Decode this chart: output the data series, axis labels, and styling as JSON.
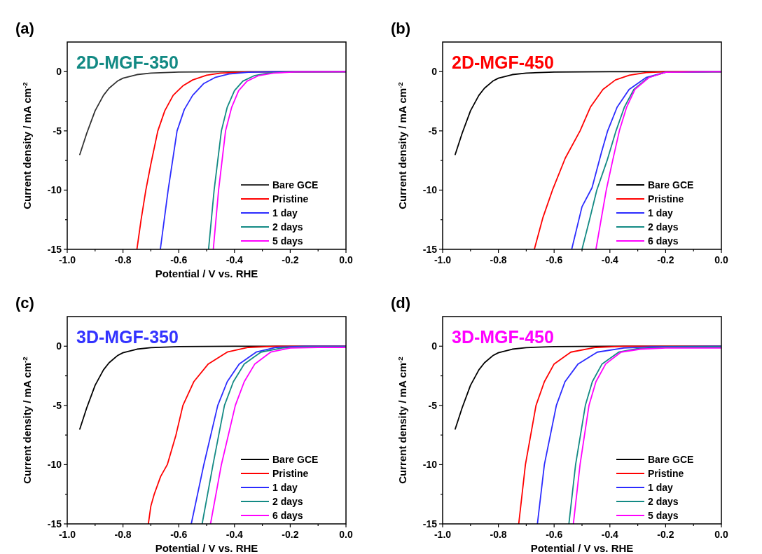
{
  "chart_data": [
    {
      "type": "line",
      "title": "(a)",
      "subtitle": "2D-MGF-350",
      "xlabel": "Potential / V vs. RHE",
      "ylabel": "Current density / mA cm$^{-2}$",
      "xlim": [
        -1,
        0
      ],
      "ylim": [
        -15,
        2.5
      ],
      "xticks": [
        {
          "value": -1,
          "label": "-1.0"
        },
        {
          "value": -0.9,
          "label": null
        },
        {
          "value": -0.8,
          "label": "-0.8"
        },
        {
          "value": -0.7,
          "label": null
        },
        {
          "value": -0.6,
          "label": "-0.6"
        },
        {
          "value": -0.5,
          "label": null
        },
        {
          "value": -0.4,
          "label": "-0.4"
        },
        {
          "value": -0.3,
          "label": null
        },
        {
          "value": -0.2,
          "label": "-0.2"
        },
        {
          "value": -0.1,
          "label": null
        },
        {
          "value": 0,
          "label": "0.0"
        }
      ],
      "yticks": [
        -15,
        {
          "value": -12.5,
          "label": null
        },
        -10,
        {
          "value": -7.5,
          "label": null
        },
        -5,
        {
          "value": -2.5,
          "label": null
        },
        0
      ],
      "legend": "bottom right",
      "series": [
        {
          "name": "Bare GCE",
          "color": "#333333",
          "x": [
            -0.955,
            -0.93,
            -0.9,
            -0.87,
            -0.85,
            -0.82,
            -0.8,
            -0.75,
            -0.7,
            -0.6,
            -0.4,
            0
          ],
          "values": [
            -7.0,
            -5.2,
            -3.3,
            -2.0,
            -1.4,
            -0.8,
            -0.55,
            -0.25,
            -0.12,
            -0.04,
            0,
            0
          ]
        },
        {
          "name": "Pristine",
          "color": "#ff0000",
          "x": [
            -0.75,
            -0.735,
            -0.718,
            -0.7,
            -0.675,
            -0.65,
            -0.62,
            -0.585,
            -0.55,
            -0.5,
            -0.45,
            -0.35,
            0
          ],
          "values": [
            -15,
            -12.5,
            -10,
            -7.8,
            -5,
            -3.3,
            -2.0,
            -1.2,
            -0.7,
            -0.3,
            -0.12,
            -0.02,
            0
          ]
        },
        {
          "name": "1 day",
          "color": "#2b2bff",
          "x": [
            -0.666,
            -0.638,
            -0.606,
            -0.58,
            -0.55,
            -0.51,
            -0.47,
            -0.42,
            -0.35,
            -0.25,
            0
          ],
          "values": [
            -15,
            -10,
            -5,
            -3.2,
            -2.0,
            -1.0,
            -0.5,
            -0.2,
            -0.05,
            0,
            0
          ]
        },
        {
          "name": "2 days",
          "color": "#138a84",
          "x": [
            -0.493,
            -0.473,
            -0.447,
            -0.426,
            -0.4,
            -0.37,
            -0.33,
            -0.28,
            -0.2,
            0
          ],
          "values": [
            -15,
            -10,
            -5,
            -3,
            -1.6,
            -0.8,
            -0.35,
            -0.12,
            -0.02,
            0
          ]
        },
        {
          "name": "5 days",
          "color": "#ff00ff",
          "x": [
            -0.476,
            -0.457,
            -0.432,
            -0.41,
            -0.385,
            -0.355,
            -0.315,
            -0.26,
            -0.18,
            0
          ],
          "values": [
            -15,
            -10,
            -5,
            -3,
            -1.6,
            -0.8,
            -0.35,
            -0.12,
            -0.02,
            0
          ]
        }
      ]
    },
    {
      "type": "line",
      "title": "(b)",
      "subtitle": "2D-MGF-450",
      "ylabel": "Current density / mA cm$^{-2}$",
      "xlim": [
        -1,
        0
      ],
      "ylim": [
        -15,
        2.5
      ],
      "xticks": [
        {
          "value": -1,
          "label": "-1.0"
        },
        {
          "value": -0.9,
          "label": null
        },
        {
          "value": -0.8,
          "label": "-0.8"
        },
        {
          "value": -0.7,
          "label": null
        },
        {
          "value": -0.6,
          "label": "-0.6"
        },
        {
          "value": -0.5,
          "label": null
        },
        {
          "value": -0.4,
          "label": "-0.4"
        },
        {
          "value": -0.3,
          "label": null
        },
        {
          "value": -0.2,
          "label": "-0.2"
        },
        {
          "value": -0.1,
          "label": null
        },
        {
          "value": 0,
          "label": "0.0"
        }
      ],
      "yticks": [
        -15,
        {
          "value": -12.5,
          "label": null
        },
        -10,
        {
          "value": -7.5,
          "label": null
        },
        -5,
        {
          "value": -2.5,
          "label": null
        },
        0
      ],
      "legend": "bottom right",
      "series": [
        {
          "name": "Bare GCE",
          "color": "#000000",
          "x": [
            -0.955,
            -0.93,
            -0.9,
            -0.87,
            -0.85,
            -0.82,
            -0.8,
            -0.75,
            -0.7,
            -0.6,
            -0.4,
            0
          ],
          "values": [
            -7.0,
            -5.2,
            -3.3,
            -2.0,
            -1.4,
            -0.8,
            -0.55,
            -0.25,
            -0.12,
            -0.04,
            0,
            0
          ]
        },
        {
          "name": "Pristine",
          "color": "#ff0000",
          "x": [
            -0.671,
            -0.64,
            -0.606,
            -0.56,
            -0.507,
            -0.47,
            -0.425,
            -0.38,
            -0.33,
            -0.27,
            -0.2,
            0
          ],
          "values": [
            -15,
            -12.3,
            -10,
            -7.3,
            -5,
            -3,
            -1.5,
            -0.7,
            -0.3,
            -0.08,
            0,
            0
          ]
        },
        {
          "name": "1 day",
          "color": "#2b2bff",
          "x": [
            -0.537,
            -0.5,
            -0.464,
            -0.43,
            -0.408,
            -0.374,
            -0.331,
            -0.27,
            -0.2,
            0
          ],
          "values": [
            -15,
            -11.4,
            -9.8,
            -6.8,
            -5,
            -3,
            -1.5,
            -0.5,
            -0.05,
            0
          ]
        },
        {
          "name": "2 days",
          "color": "#138a84",
          "x": [
            -0.5,
            -0.473,
            -0.447,
            -0.41,
            -0.378,
            -0.348,
            -0.314,
            -0.262,
            -0.2,
            0
          ],
          "values": [
            -15,
            -12.5,
            -10,
            -7.5,
            -5,
            -3,
            -1.5,
            -0.5,
            -0.05,
            0
          ]
        },
        {
          "name": "6 days",
          "color": "#ff00ff",
          "x": [
            -0.45,
            -0.413,
            -0.39,
            -0.366,
            -0.34,
            -0.31,
            -0.26,
            -0.2,
            0
          ],
          "values": [
            -15,
            -10,
            -7.5,
            -5,
            -3,
            -1.5,
            -0.5,
            -0.05,
            0
          ]
        }
      ]
    },
    {
      "type": "line",
      "title": "(c)",
      "subtitle": "3D-MGF-350",
      "xlabel": "Potential / V vs. RHE",
      "ylabel": "Current density / mA cm$^{-2}$",
      "xlim": [
        -1,
        0
      ],
      "ylim": [
        -15,
        2.5
      ],
      "xticks": [
        {
          "value": -1,
          "label": "-1.0"
        },
        {
          "value": -0.9,
          "label": null
        },
        {
          "value": -0.8,
          "label": "-0.8"
        },
        {
          "value": -0.7,
          "label": null
        },
        {
          "value": -0.6,
          "label": "-0.6"
        },
        {
          "value": -0.5,
          "label": null
        },
        {
          "value": -0.4,
          "label": "-0.4"
        },
        {
          "value": -0.3,
          "label": null
        },
        {
          "value": -0.2,
          "label": "-0.2"
        },
        {
          "value": -0.1,
          "label": null
        },
        {
          "value": 0,
          "label": "0.0"
        }
      ],
      "yticks": [
        -15,
        {
          "value": -12.5,
          "label": null
        },
        -10,
        {
          "value": -7.5,
          "label": null
        },
        -5,
        {
          "value": -2.5,
          "label": null
        },
        0
      ],
      "legend": "bottom right",
      "series": [
        {
          "name": "Bare GCE",
          "color": "#000000",
          "x": [
            -0.955,
            -0.93,
            -0.9,
            -0.87,
            -0.85,
            -0.82,
            -0.8,
            -0.75,
            -0.7,
            -0.6,
            -0.4,
            0
          ],
          "values": [
            -7.0,
            -5.2,
            -3.3,
            -2.0,
            -1.4,
            -0.8,
            -0.55,
            -0.25,
            -0.12,
            -0.04,
            0,
            0
          ]
        },
        {
          "name": "Pristine",
          "color": "#ff0000",
          "x": [
            -0.709,
            -0.7,
            -0.688,
            -0.665,
            -0.641,
            -0.61,
            -0.585,
            -0.546,
            -0.494,
            -0.426,
            -0.35,
            -0.25,
            0
          ],
          "values": [
            -15,
            -13.5,
            -12.5,
            -11,
            -10,
            -7.5,
            -5,
            -3,
            -1.5,
            -0.5,
            -0.1,
            0,
            0
          ]
        },
        {
          "name": "1 day",
          "color": "#2b2bff",
          "x": [
            -0.555,
            -0.51,
            -0.46,
            -0.426,
            -0.383,
            -0.322,
            -0.25,
            -0.15,
            0
          ],
          "values": [
            -15,
            -10,
            -5,
            -3,
            -1.5,
            -0.5,
            -0.1,
            0,
            0
          ]
        },
        {
          "name": "2 days",
          "color": "#138a84",
          "x": [
            -0.516,
            -0.477,
            -0.436,
            -0.404,
            -0.365,
            -0.305,
            -0.23,
            -0.15,
            0
          ],
          "values": [
            -15,
            -10,
            -5,
            -3,
            -1.5,
            -0.5,
            -0.15,
            -0.05,
            -0.05
          ]
        },
        {
          "name": "6 days",
          "color": "#ff00ff",
          "x": [
            -0.486,
            -0.447,
            -0.397,
            -0.365,
            -0.327,
            -0.27,
            -0.2,
            -0.1,
            0
          ],
          "values": [
            -15,
            -10,
            -5,
            -3,
            -1.5,
            -0.5,
            -0.15,
            -0.1,
            -0.1
          ]
        }
      ]
    },
    {
      "type": "line",
      "title": "(d)",
      "subtitle": "3D-MGF-450",
      "xlabel": "Potential / V vs. RHE",
      "ylabel": "Current density / mA cm$^{-2}$",
      "xlim": [
        -1,
        0
      ],
      "ylim": [
        -15,
        2.5
      ],
      "xticks": [
        {
          "value": -1,
          "label": "-1.0"
        },
        {
          "value": -0.9,
          "label": null
        },
        {
          "value": -0.8,
          "label": "-0.8"
        },
        {
          "value": -0.7,
          "label": null
        },
        {
          "value": -0.6,
          "label": "-0.6"
        },
        {
          "value": -0.5,
          "label": null
        },
        {
          "value": -0.4,
          "label": "-0.4"
        },
        {
          "value": -0.3,
          "label": null
        },
        {
          "value": -0.2,
          "label": "-0.2"
        },
        {
          "value": -0.1,
          "label": null
        },
        {
          "value": 0,
          "label": "0.0"
        }
      ],
      "yticks": [
        -15,
        {
          "value": -12.5,
          "label": null
        },
        -10,
        {
          "value": -7.5,
          "label": null
        },
        -5,
        {
          "value": -2.5,
          "label": null
        },
        0
      ],
      "legend": "bottom right",
      "series": [
        {
          "name": "Bare GCE",
          "color": "#000000",
          "x": [
            -0.955,
            -0.93,
            -0.9,
            -0.87,
            -0.85,
            -0.82,
            -0.8,
            -0.75,
            -0.7,
            -0.6,
            -0.4,
            0
          ],
          "values": [
            -7.0,
            -5.2,
            -3.3,
            -2.0,
            -1.4,
            -0.8,
            -0.55,
            -0.25,
            -0.12,
            -0.04,
            0,
            0
          ]
        },
        {
          "name": "Pristine",
          "color": "#ff0000",
          "x": [
            -0.727,
            -0.703,
            -0.665,
            -0.635,
            -0.6,
            -0.54,
            -0.45,
            -0.35,
            0
          ],
          "values": [
            -15,
            -10,
            -5,
            -3,
            -1.5,
            -0.5,
            -0.1,
            0,
            0
          ]
        },
        {
          "name": "1 day",
          "color": "#2b2bff",
          "x": [
            -0.66,
            -0.635,
            -0.592,
            -0.561,
            -0.514,
            -0.445,
            -0.35,
            -0.25,
            0
          ],
          "values": [
            -15,
            -10,
            -5,
            -3,
            -1.5,
            -0.5,
            -0.15,
            -0.05,
            0
          ]
        },
        {
          "name": "2 days",
          "color": "#138a84",
          "x": [
            -0.547,
            -0.523,
            -0.488,
            -0.463,
            -0.428,
            -0.368,
            -0.3,
            -0.2,
            0
          ],
          "values": [
            -15,
            -10,
            -5,
            -3,
            -1.5,
            -0.5,
            -0.2,
            -0.08,
            -0.05
          ]
        },
        {
          "name": "5 days",
          "color": "#ff00ff",
          "x": [
            -0.531,
            -0.507,
            -0.475,
            -0.45,
            -0.415,
            -0.36,
            -0.29,
            -0.2,
            0
          ],
          "values": [
            -15,
            -10,
            -5,
            -3,
            -1.5,
            -0.5,
            -0.25,
            -0.15,
            -0.15
          ]
        }
      ]
    }
  ]
}
